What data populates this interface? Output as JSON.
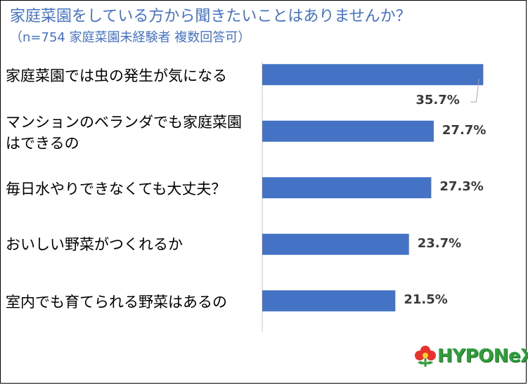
{
  "header": {
    "title": "家庭菜園をしている方から聞きたいことはありませんか？",
    "subtitle": "（n=754 家庭菜園未経験者 複数回答可）"
  },
  "chart_data": {
    "type": "bar",
    "orientation": "horizontal",
    "title": "家庭菜園をしている方から聞きたいことはありませんか？",
    "categories": [
      "家庭菜園では虫の発生が気になる",
      "マンションのベランダでも家庭菜園はできるの",
      "毎日水やりできなくても大丈夫？",
      "おいしい野菜がつくれるか",
      "室内でも育てられる野菜はあるの"
    ],
    "values": [
      35.7,
      27.7,
      27.3,
      23.7,
      21.5
    ],
    "value_labels": [
      "35.7%",
      "27.7%",
      "27.3%",
      "23.7%",
      "21.5%"
    ],
    "unit": "%",
    "xlim": [
      0,
      36
    ],
    "bar_color": "#4472C4",
    "grid": false,
    "legend": "none"
  },
  "logo": {
    "text": "HYPONeX"
  }
}
